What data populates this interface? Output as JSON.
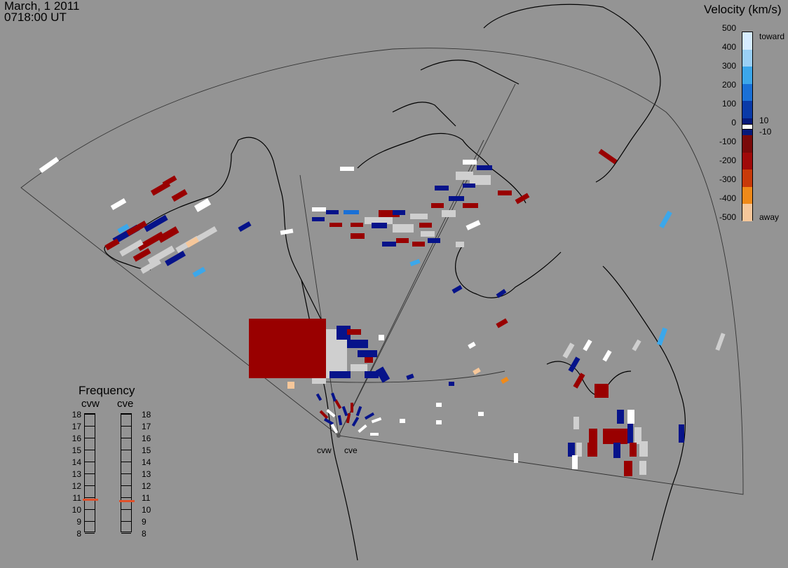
{
  "header": {
    "date": "March, 1 2011",
    "time": "0718:00 UT"
  },
  "sites": {
    "west": "cvw",
    "east": "cve"
  },
  "velocity_legend": {
    "title": "Velocity (km/s)",
    "ticks": [
      "500",
      "400",
      "300",
      "200",
      "100",
      "0",
      "-100",
      "-200",
      "-300",
      "-400",
      "-500"
    ],
    "threshold_pos": "10",
    "threshold_neg": "-10",
    "toward_label": "toward",
    "away_label": "away",
    "colors": [
      "#d6ecff",
      "#9ad0f5",
      "#3ca7ea",
      "#1a70d6",
      "#0a3aa8",
      "#071a7a",
      "#7a0a0a",
      "#a00a0a",
      "#c83a0a",
      "#ef8a1a",
      "#f6c79a"
    ]
  },
  "frequency": {
    "title": "Frequency",
    "col_west": "cvw",
    "col_east": "cve",
    "ticks": [
      "18",
      "17",
      "16",
      "15",
      "14",
      "13",
      "12",
      "11",
      "10",
      "9",
      "8"
    ],
    "west_mhz": 10.8,
    "east_mhz": 10.7,
    "marker_color": "#e0502a"
  },
  "colors": {
    "background": "#949494",
    "dark_red": "#990000",
    "dark_blue": "#06138a",
    "light_gray": "#cfcfcf"
  }
}
